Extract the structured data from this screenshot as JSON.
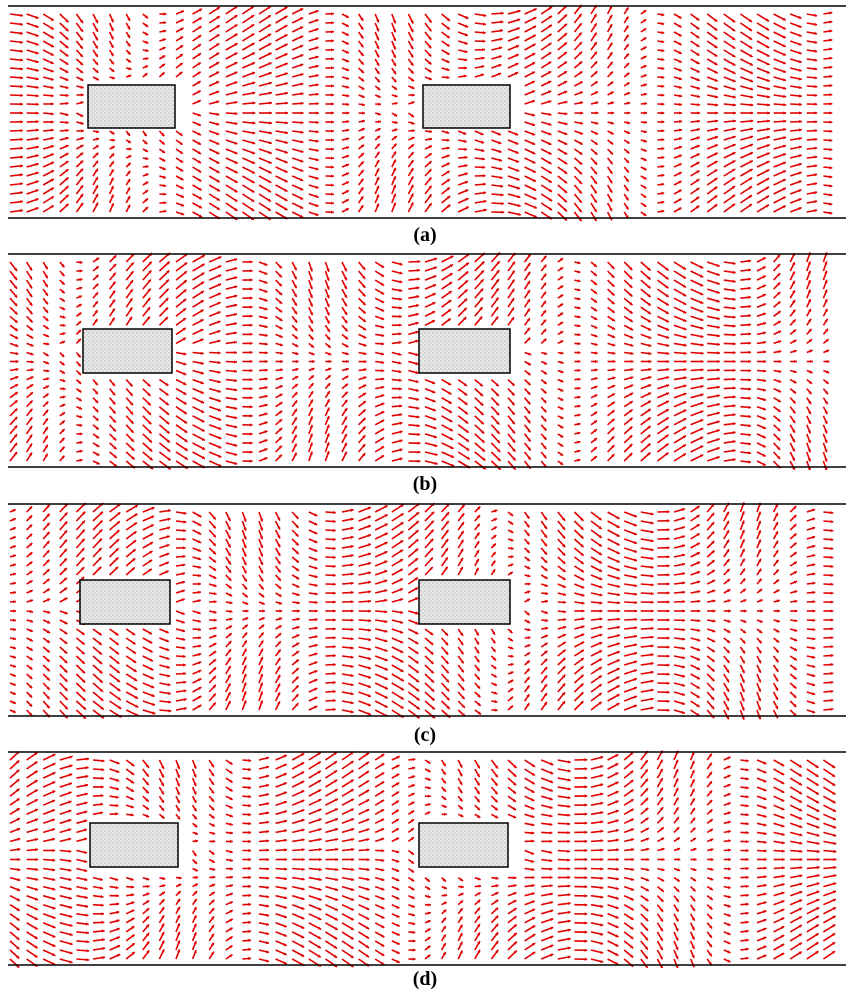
{
  "arrow_color": "#e00000",
  "obstacle_fill": "#e9e9e9",
  "wall_color": "#000000",
  "panels": [
    {
      "caption": "(a)",
      "flow": "left-to-right",
      "phase": 0.0
    },
    {
      "caption": "(b)",
      "flow": "left-to-right",
      "phase": 1.6
    },
    {
      "caption": "(c)",
      "flow": "left-to-right",
      "phase": 3.1
    },
    {
      "caption": "(d)",
      "flow": "left-to-right",
      "phase": 4.7
    }
  ]
}
